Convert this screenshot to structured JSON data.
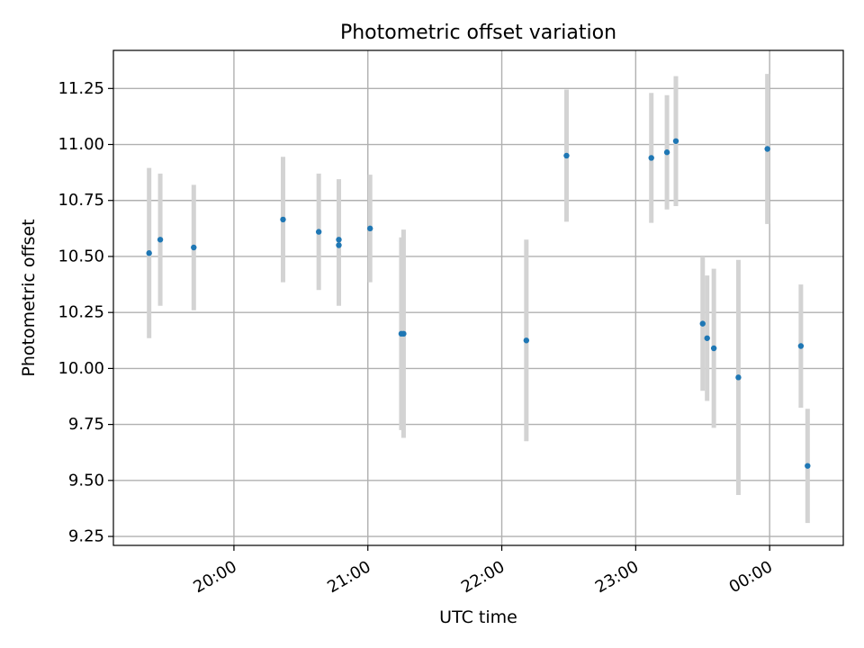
{
  "chart_data": {
    "type": "scatter",
    "title": "Photometric offset variation",
    "xlabel": "UTC time",
    "ylabel": "Photometric offset",
    "grid": true,
    "xlim_hours": [
      19.1,
      24.55
    ],
    "ylim": [
      9.21,
      11.42
    ],
    "x_ticks": [
      {
        "value": 20,
        "label": "20:00"
      },
      {
        "value": 21,
        "label": "21:00"
      },
      {
        "value": 22,
        "label": "22:00"
      },
      {
        "value": 23,
        "label": "23:00"
      },
      {
        "value": 24,
        "label": "00:00"
      }
    ],
    "y_ticks": [
      {
        "value": 9.25,
        "label": "9.25"
      },
      {
        "value": 9.5,
        "label": "9.50"
      },
      {
        "value": 9.75,
        "label": "9.75"
      },
      {
        "value": 10.0,
        "label": "10.00"
      },
      {
        "value": 10.25,
        "label": "10.25"
      },
      {
        "value": 10.5,
        "label": "10.50"
      },
      {
        "value": 10.75,
        "label": "10.75"
      },
      {
        "value": 11.0,
        "label": "11.00"
      },
      {
        "value": 11.25,
        "label": "11.25"
      }
    ],
    "marker_color": "#1f77b4",
    "errorbar_color": "#d3d3d3",
    "points": [
      {
        "time": "19:22",
        "y": 10.515,
        "err": 0.38
      },
      {
        "time": "19:27",
        "y": 10.575,
        "err": 0.295
      },
      {
        "time": "19:42",
        "y": 10.54,
        "err": 0.28
      },
      {
        "time": "20:22",
        "y": 10.665,
        "err": 0.28
      },
      {
        "time": "20:38",
        "y": 10.61,
        "err": 0.26
      },
      {
        "time": "20:47",
        "y": 10.575,
        "err": 0.27
      },
      {
        "time": "20:47",
        "y": 10.55,
        "err": 0.27
      },
      {
        "time": "21:01",
        "y": 10.625,
        "err": 0.24
      },
      {
        "time": "21:15",
        "y": 10.155,
        "err": 0.43
      },
      {
        "time": "21:16",
        "y": 10.155,
        "err": 0.465
      },
      {
        "time": "22:11",
        "y": 10.125,
        "err": 0.45
      },
      {
        "time": "22:29",
        "y": 10.95,
        "err": 0.295
      },
      {
        "time": "23:07",
        "y": 10.94,
        "err": 0.29
      },
      {
        "time": "23:14",
        "y": 10.965,
        "err": 0.255
      },
      {
        "time": "23:18",
        "y": 11.015,
        "err": 0.29
      },
      {
        "time": "23:30",
        "y": 10.2,
        "err": 0.3
      },
      {
        "time": "23:32",
        "y": 10.135,
        "err": 0.28
      },
      {
        "time": "23:35",
        "y": 10.09,
        "err": 0.355
      },
      {
        "time": "23:46",
        "y": 9.96,
        "err": 0.525
      },
      {
        "time": "23:59",
        "y": 10.98,
        "err": 0.335
      },
      {
        "time": "00:14",
        "y": 10.1,
        "err": 0.275
      },
      {
        "time": "00:17",
        "y": 9.565,
        "err": 0.255
      }
    ]
  }
}
